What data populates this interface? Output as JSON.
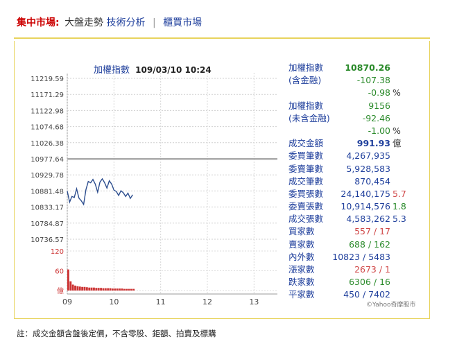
{
  "header": {
    "market_label": "集中市場:",
    "current_label": "大盤走勢",
    "tech_link": "技術分析",
    "separator": "|",
    "otc_link": "櫃買市場"
  },
  "chart_title": {
    "name": "加權指數",
    "datetime": "109/03/10 10:24"
  },
  "stats": [
    {
      "label": "加權指數",
      "value": "10870.26",
      "extra": "",
      "value_color": "green",
      "bold": true
    },
    {
      "label": "(含金融)",
      "value": "-107.38",
      "extra": "",
      "value_color": "green",
      "bold": false
    },
    {
      "label": "",
      "value": "-0.98",
      "extra": "%",
      "value_color": "green",
      "bold": false
    },
    {
      "label": "加權指數",
      "value": "9156",
      "extra": "",
      "value_color": "green",
      "bold": false
    },
    {
      "label": "(未含金融)",
      "value": "-92.46",
      "extra": "",
      "value_color": "green",
      "bold": false
    },
    {
      "label": "",
      "value": "-1.00",
      "extra": "%",
      "value_color": "green",
      "bold": false
    },
    {
      "label": "成交金額",
      "value": "991.93",
      "extra": "億",
      "value_color": "blue",
      "bold": true
    },
    {
      "label": "委買筆數",
      "value": "4,267,935",
      "extra": "",
      "value_color": "blue",
      "bold": false
    },
    {
      "label": "委賣筆數",
      "value": "5,928,583",
      "extra": "",
      "value_color": "blue",
      "bold": false
    },
    {
      "label": "成交筆數",
      "value": "870,454",
      "extra": "",
      "value_color": "blue",
      "bold": false
    },
    {
      "label": "委買張數",
      "value": "24,140,175",
      "extra": "5.7",
      "value_color": "blue",
      "extra_color": "red",
      "bold": false
    },
    {
      "label": "委賣張數",
      "value": "10,914,576",
      "extra": "1.8",
      "value_color": "blue",
      "extra_color": "green",
      "bold": false
    },
    {
      "label": "成交張數",
      "value": "4,583,262",
      "extra": "5.3",
      "value_color": "blue",
      "extra_color": "blue",
      "bold": false
    },
    {
      "label": "買家數",
      "value": "557 / 17",
      "extra": "",
      "value_color": "red",
      "bold": false
    },
    {
      "label": "賣家數",
      "value": "688 / 162",
      "extra": "",
      "value_color": "green",
      "bold": false
    },
    {
      "label": "內外數",
      "value": "10823 / 5483",
      "extra": "",
      "value_color": "blue",
      "bold": false
    },
    {
      "label": "漲家數",
      "value": "2673 / 1",
      "extra": "",
      "value_color": "red",
      "bold": false
    },
    {
      "label": "跌家數",
      "value": "6306 / 16",
      "extra": "",
      "value_color": "green",
      "bold": false
    },
    {
      "label": "平家數",
      "value": "450 / 7402",
      "extra": "",
      "value_color": "blue",
      "bold": false
    }
  ],
  "credit": "©Yahoo奇摩股市",
  "footnote": "註：成交金額含盤後定價，不含零股、鉅額、拍賣及標購",
  "colors": {
    "line": "#2c4d8e",
    "reference": "#aaaaaa",
    "volume": "#c33",
    "border": "#e8d35c"
  },
  "chart_data": {
    "type": "line",
    "price_axis": {
      "ticks": [
        "11219.59",
        "11171.29",
        "11122.98",
        "11074.68",
        "11026.38",
        "10977.64",
        "10929.78",
        "10881.48",
        "10833.17",
        "10784.87",
        "10736.57"
      ],
      "ylim": [
        10736.57,
        11219.59
      ],
      "reference": 10977.64
    },
    "volume_axis": {
      "ticks": [
        "120",
        "60",
        "億"
      ],
      "ylim": [
        0,
        120
      ]
    },
    "x_axis": {
      "ticks": [
        "09",
        "10",
        "11",
        "12",
        "13"
      ],
      "xlim": [
        9.0,
        13.5
      ]
    },
    "price_series": {
      "x": [
        9.0,
        9.05,
        9.1,
        9.15,
        9.2,
        9.25,
        9.3,
        9.35,
        9.4,
        9.45,
        9.5,
        9.55,
        9.6,
        9.65,
        9.7,
        9.75,
        9.8,
        9.85,
        9.9,
        9.95,
        10.0,
        10.05,
        10.1,
        10.15,
        10.2,
        10.25,
        10.3,
        10.35,
        10.4
      ],
      "y": [
        10881,
        10848,
        10865,
        10862,
        10888,
        10860,
        10852,
        10841,
        10885,
        10910,
        10906,
        10916,
        10902,
        10878,
        10908,
        10918,
        10906,
        10890,
        10912,
        10902,
        10884,
        10880,
        10868,
        10882,
        10876,
        10865,
        10875,
        10859,
        10870
      ]
    },
    "volume_series": {
      "x": [
        9.0,
        9.05,
        9.1,
        9.15,
        9.2,
        9.25,
        9.3,
        9.35,
        9.4,
        9.45,
        9.5,
        9.55,
        9.6,
        9.65,
        9.7,
        9.75,
        9.8,
        9.85,
        9.9,
        9.95,
        10.0,
        10.05,
        10.1,
        10.15,
        10.2,
        10.25,
        10.3,
        10.35,
        10.4
      ],
      "values": [
        64,
        28,
        18,
        15,
        13,
        12,
        11,
        11,
        10,
        9,
        9,
        9,
        8,
        8,
        8,
        7,
        7,
        7,
        7,
        6,
        6,
        6,
        6,
        6,
        5,
        5,
        5,
        5,
        5
      ]
    }
  }
}
